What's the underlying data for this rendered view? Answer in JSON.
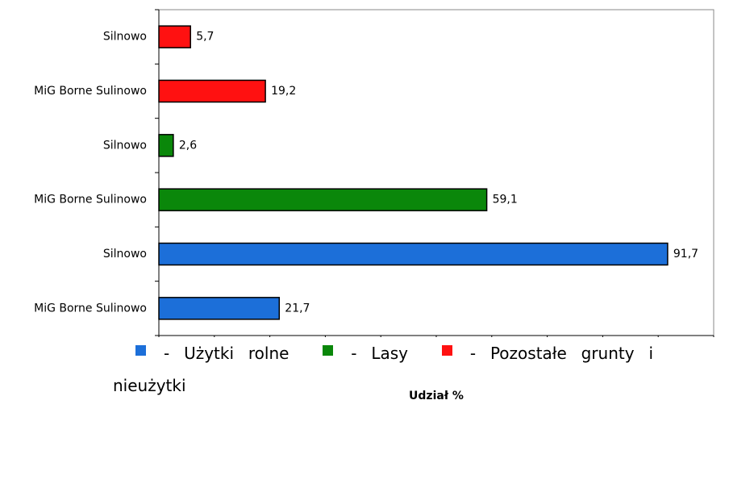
{
  "chart_data": {
    "type": "hbar",
    "categories": [
      "MiG Borne Sulinowo",
      "Silnowo",
      "MiG Borne Sulinowo",
      "Silnowo",
      "MiG Borne Sulinowo",
      "Silnowo"
    ],
    "values": [
      21.7,
      91.7,
      59.1,
      2.6,
      19.2,
      5.7
    ],
    "value_labels": [
      "21,7",
      "91,7",
      "59,1",
      "2,6",
      "19,2",
      "5,7"
    ],
    "colors": [
      "#1c6fd9",
      "#1c6fd9",
      "#0a870a",
      "#0a870a",
      "#ff1111",
      "#ff1111"
    ],
    "xlim": [
      0,
      100
    ],
    "xticks": [
      0,
      10,
      20,
      30,
      40,
      50,
      60,
      70,
      80,
      90,
      100
    ],
    "xlabel": "Udział %",
    "legend": [
      {
        "name": "- Użytki rolne",
        "color": "#1c6fd9"
      },
      {
        "name": "- Lasy",
        "color": "#0a870a"
      },
      {
        "name": "- Pozostałe grunty i nieużytki",
        "color": "#ff1111"
      }
    ]
  }
}
